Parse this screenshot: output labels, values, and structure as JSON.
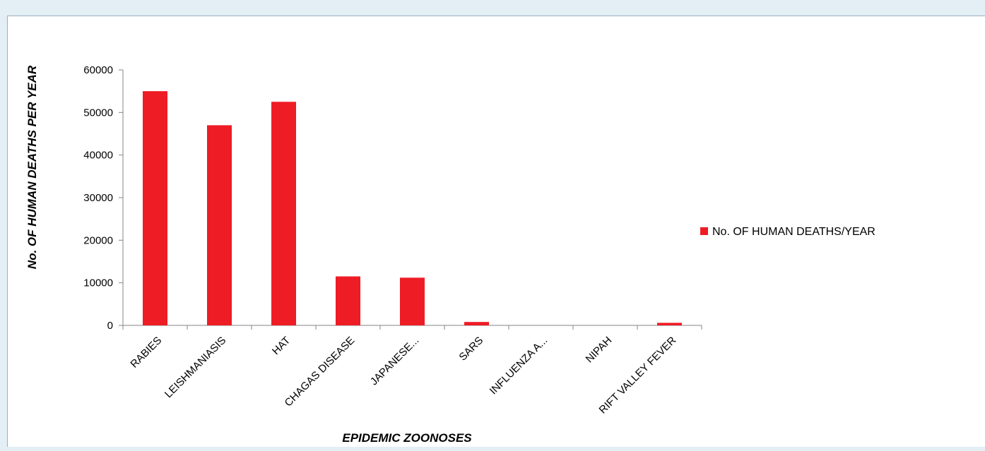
{
  "chart_data": {
    "type": "bar",
    "title": "",
    "xlabel": "EPIDEMIC ZOONOSES",
    "ylabel": "No. OF HUMAN DEATHS PER YEAR",
    "categories": [
      "RABIES",
      "LEISHMANIASIS",
      "HAT",
      "CHAGAS DISEASE",
      "JAPANESE...",
      "SARS",
      "INFLUENZA A...",
      "NIPAH",
      "RIFT VALLEY FEVER"
    ],
    "series": [
      {
        "name": "No. OF HUMAN DEATHS/YEAR",
        "color": "#ee1c25",
        "values": [
          55000,
          47000,
          52500,
          11500,
          11200,
          800,
          0,
          0,
          600
        ]
      }
    ],
    "ylim": [
      0,
      60000
    ],
    "yticks": [
      0,
      10000,
      20000,
      30000,
      40000,
      50000,
      60000
    ],
    "grid": false,
    "legend_position": "right"
  }
}
